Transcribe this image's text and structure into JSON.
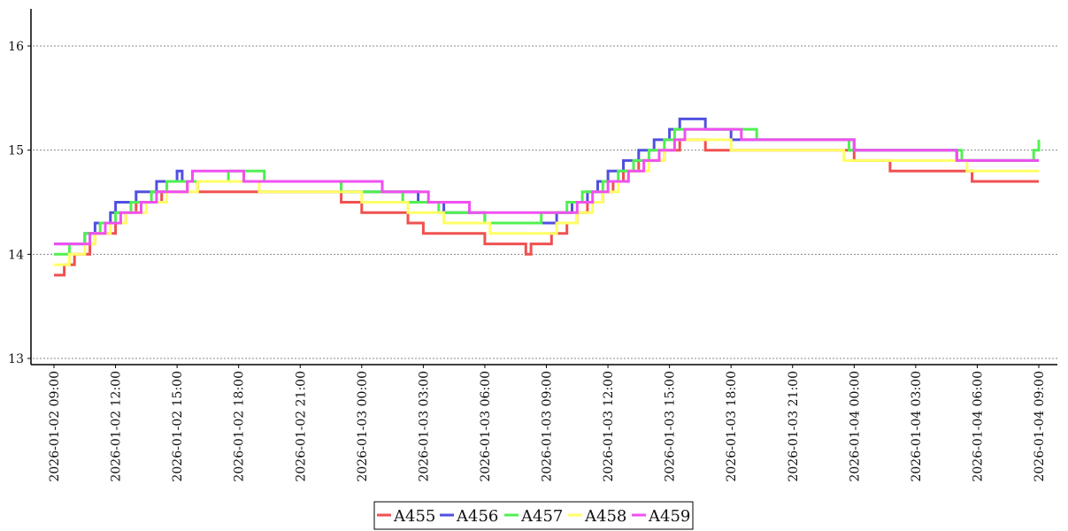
{
  "chart_data": {
    "type": "line",
    "title": "",
    "xlabel": "",
    "ylabel": "",
    "ylim": [
      13,
      16.35
    ],
    "yticks": [
      "13",
      "14",
      "15",
      "16"
    ],
    "xticks": [
      "2026-01-02 09:00",
      "2026-01-02 12:00",
      "2026-01-02 15:00",
      "2026-01-02 18:00",
      "2026-01-02 21:00",
      "2026-01-03 00:00",
      "2026-01-03 03:00",
      "2026-01-03 06:00",
      "2026-01-03 09:00",
      "2026-01-03 12:00",
      "2026-01-03 15:00",
      "2026-01-03 18:00",
      "2026-01-03 21:00",
      "2026-01-04 00:00",
      "2026-01-04 03:00",
      "2026-01-04 06:00",
      "2026-01-04 09:00"
    ],
    "grid": "horizontal dotted",
    "legend_position": "bottom-center",
    "series": [
      {
        "name": "A455",
        "color": "#f05050",
        "points": [
          [
            "2026-01-02 09:00",
            13.8
          ],
          [
            "2026-01-02 09:30",
            13.9
          ],
          [
            "2026-01-02 10:00",
            14.0
          ],
          [
            "2026-01-02 10:45",
            14.1
          ],
          [
            "2026-01-02 11:00",
            14.2
          ],
          [
            "2026-01-02 12:00",
            14.3
          ],
          [
            "2026-01-02 12:30",
            14.4
          ],
          [
            "2026-01-02 13:00",
            14.5
          ],
          [
            "2026-01-02 14:15",
            14.6
          ],
          [
            "2026-01-02 15:30",
            14.7
          ],
          [
            "2026-01-02 16:00",
            14.6
          ],
          [
            "2026-01-02 23:00",
            14.5
          ],
          [
            "2026-01-03 00:00",
            14.4
          ],
          [
            "2026-01-03 02:15",
            14.3
          ],
          [
            "2026-01-03 03:00",
            14.2
          ],
          [
            "2026-01-03 06:00",
            14.1
          ],
          [
            "2026-01-03 08:00",
            14.0
          ],
          [
            "2026-01-03 08:15",
            14.1
          ],
          [
            "2026-01-03 09:15",
            14.2
          ],
          [
            "2026-01-03 10:00",
            14.3
          ],
          [
            "2026-01-03 10:30",
            14.4
          ],
          [
            "2026-01-03 11:00",
            14.5
          ],
          [
            "2026-01-03 11:45",
            14.6
          ],
          [
            "2026-01-03 12:15",
            14.7
          ],
          [
            "2026-01-03 12:45",
            14.8
          ],
          [
            "2026-01-03 13:30",
            14.9
          ],
          [
            "2026-01-03 14:45",
            15.0
          ],
          [
            "2026-01-03 15:30",
            15.1
          ],
          [
            "2026-01-03 16:45",
            15.0
          ],
          [
            "2026-01-04 00:00",
            14.9
          ],
          [
            "2026-01-04 01:45",
            14.8
          ],
          [
            "2026-01-04 05:45",
            14.7
          ],
          [
            "2026-01-04 09:00",
            14.7
          ]
        ]
      },
      {
        "name": "A456",
        "color": "#5050e0",
        "points": [
          [
            "2026-01-02 09:00",
            14.1
          ],
          [
            "2026-01-02 10:30",
            14.2
          ],
          [
            "2026-01-02 11:00",
            14.3
          ],
          [
            "2026-01-02 11:45",
            14.4
          ],
          [
            "2026-01-02 12:00",
            14.5
          ],
          [
            "2026-01-02 13:00",
            14.6
          ],
          [
            "2026-01-02 14:00",
            14.7
          ],
          [
            "2026-01-02 15:00",
            14.8
          ],
          [
            "2026-01-02 15:15",
            14.7
          ],
          [
            "2026-01-02 23:00",
            14.6
          ],
          [
            "2026-01-03 02:45",
            14.5
          ],
          [
            "2026-01-03 04:00",
            14.4
          ],
          [
            "2026-01-03 06:00",
            14.3
          ],
          [
            "2026-01-03 09:30",
            14.4
          ],
          [
            "2026-01-03 10:15",
            14.5
          ],
          [
            "2026-01-03 11:00",
            14.6
          ],
          [
            "2026-01-03 11:30",
            14.7
          ],
          [
            "2026-01-03 12:00",
            14.8
          ],
          [
            "2026-01-03 12:45",
            14.9
          ],
          [
            "2026-01-03 13:30",
            15.0
          ],
          [
            "2026-01-03 14:15",
            15.1
          ],
          [
            "2026-01-03 15:00",
            15.2
          ],
          [
            "2026-01-03 15:30",
            15.3
          ],
          [
            "2026-01-03 16:45",
            15.2
          ],
          [
            "2026-01-03 18:00",
            15.1
          ],
          [
            "2026-01-04 00:00",
            15.0
          ],
          [
            "2026-01-04 05:00",
            14.9
          ],
          [
            "2026-01-04 09:00",
            14.9
          ]
        ]
      },
      {
        "name": "A457",
        "color": "#50f050",
        "points": [
          [
            "2026-01-02 09:00",
            14.0
          ],
          [
            "2026-01-02 09:45",
            14.1
          ],
          [
            "2026-01-02 10:30",
            14.2
          ],
          [
            "2026-01-02 11:15",
            14.3
          ],
          [
            "2026-01-02 12:00",
            14.4
          ],
          [
            "2026-01-02 12:45",
            14.5
          ],
          [
            "2026-01-02 13:45",
            14.6
          ],
          [
            "2026-01-02 14:30",
            14.7
          ],
          [
            "2026-01-02 17:30",
            14.8
          ],
          [
            "2026-01-02 19:15",
            14.7
          ],
          [
            "2026-01-02 23:00",
            14.6
          ],
          [
            "2026-01-03 02:00",
            14.5
          ],
          [
            "2026-01-03 03:45",
            14.4
          ],
          [
            "2026-01-03 06:00",
            14.3
          ],
          [
            "2026-01-03 08:45",
            14.4
          ],
          [
            "2026-01-03 10:00",
            14.5
          ],
          [
            "2026-01-03 10:45",
            14.6
          ],
          [
            "2026-01-03 11:45",
            14.7
          ],
          [
            "2026-01-03 12:30",
            14.8
          ],
          [
            "2026-01-03 13:15",
            14.9
          ],
          [
            "2026-01-03 14:00",
            15.0
          ],
          [
            "2026-01-03 14:45",
            15.1
          ],
          [
            "2026-01-03 15:15",
            15.2
          ],
          [
            "2026-01-03 18:00",
            15.2
          ],
          [
            "2026-01-03 19:15",
            15.1
          ],
          [
            "2026-01-03 23:45",
            15.0
          ],
          [
            "2026-01-04 05:15",
            14.9
          ],
          [
            "2026-01-04 08:45",
            15.0
          ],
          [
            "2026-01-04 09:00",
            15.1
          ]
        ]
      },
      {
        "name": "A458",
        "color": "#ffff66",
        "points": [
          [
            "2026-01-02 09:00",
            13.9
          ],
          [
            "2026-01-02 09:45",
            14.0
          ],
          [
            "2026-01-02 10:30",
            14.1
          ],
          [
            "2026-01-02 11:00",
            14.2
          ],
          [
            "2026-01-02 11:45",
            14.3
          ],
          [
            "2026-01-02 12:30",
            14.4
          ],
          [
            "2026-01-02 13:30",
            14.5
          ],
          [
            "2026-01-02 14:30",
            14.6
          ],
          [
            "2026-01-02 16:00",
            14.7
          ],
          [
            "2026-01-02 19:00",
            14.6
          ],
          [
            "2026-01-02 23:00",
            14.6
          ],
          [
            "2026-01-03 00:00",
            14.5
          ],
          [
            "2026-01-03 01:30",
            14.5
          ],
          [
            "2026-01-03 02:15",
            14.4
          ],
          [
            "2026-01-03 04:00",
            14.3
          ],
          [
            "2026-01-03 06:15",
            14.2
          ],
          [
            "2026-01-03 09:30",
            14.3
          ],
          [
            "2026-01-03 10:30",
            14.4
          ],
          [
            "2026-01-03 11:15",
            14.5
          ],
          [
            "2026-01-03 11:45",
            14.6
          ],
          [
            "2026-01-03 12:30",
            14.7
          ],
          [
            "2026-01-03 13:00",
            14.8
          ],
          [
            "2026-01-03 14:00",
            14.9
          ],
          [
            "2026-01-03 14:45",
            15.0
          ],
          [
            "2026-01-03 15:15",
            15.1
          ],
          [
            "2026-01-03 17:00",
            15.1
          ],
          [
            "2026-01-03 18:00",
            15.0
          ],
          [
            "2026-01-03 23:30",
            14.9
          ],
          [
            "2026-01-04 05:30",
            14.8
          ],
          [
            "2026-01-04 09:00",
            14.8
          ]
        ]
      },
      {
        "name": "A459",
        "color": "#f050f0",
        "points": [
          [
            "2026-01-02 09:00",
            14.1
          ],
          [
            "2026-01-02 10:15",
            14.1
          ],
          [
            "2026-01-02 10:45",
            14.2
          ],
          [
            "2026-01-02 11:30",
            14.3
          ],
          [
            "2026-01-02 12:15",
            14.4
          ],
          [
            "2026-01-02 13:15",
            14.5
          ],
          [
            "2026-01-02 14:00",
            14.6
          ],
          [
            "2026-01-02 15:30",
            14.7
          ],
          [
            "2026-01-02 15:45",
            14.8
          ],
          [
            "2026-01-02 18:15",
            14.7
          ],
          [
            "2026-01-03 01:00",
            14.6
          ],
          [
            "2026-01-03 03:15",
            14.5
          ],
          [
            "2026-01-03 05:15",
            14.4
          ],
          [
            "2026-01-03 09:30",
            14.4
          ],
          [
            "2026-01-03 10:30",
            14.5
          ],
          [
            "2026-01-03 11:15",
            14.6
          ],
          [
            "2026-01-03 12:00",
            14.7
          ],
          [
            "2026-01-03 13:00",
            14.8
          ],
          [
            "2026-01-03 13:45",
            14.9
          ],
          [
            "2026-01-03 14:30",
            15.0
          ],
          [
            "2026-01-03 15:15",
            15.1
          ],
          [
            "2026-01-03 15:45",
            15.2
          ],
          [
            "2026-01-03 18:30",
            15.1
          ],
          [
            "2026-01-04 00:00",
            15.0
          ],
          [
            "2026-01-04 05:00",
            14.9
          ],
          [
            "2026-01-04 09:00",
            14.9
          ]
        ]
      }
    ]
  }
}
